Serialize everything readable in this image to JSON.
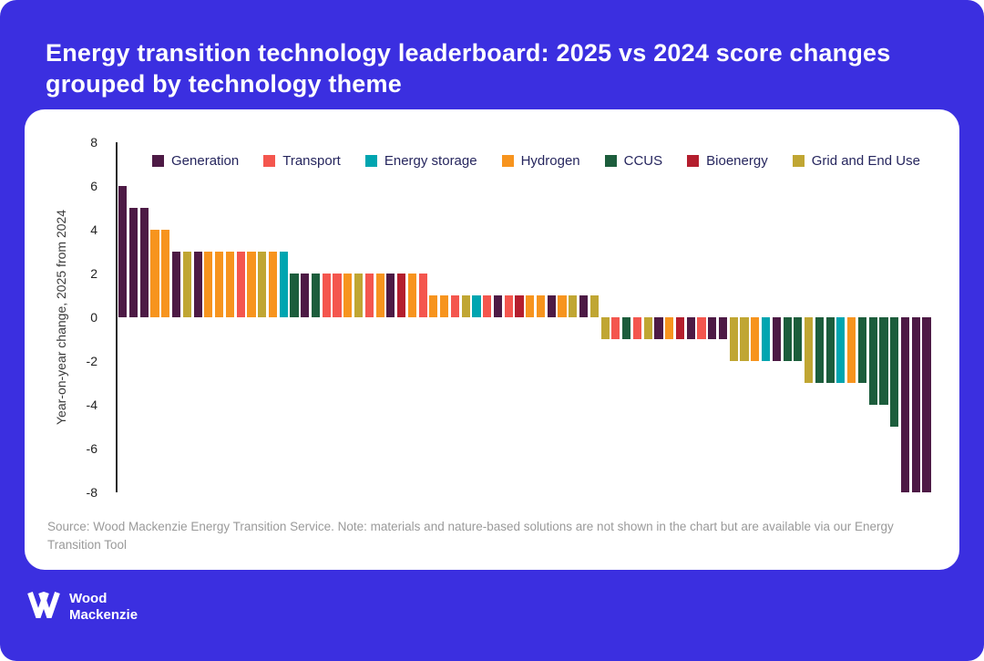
{
  "page": {
    "title": "Energy transition technology leaderboard: 2025 vs 2024 score changes grouped by technology theme",
    "background_color": "#3B2FE0",
    "source_note": "Source: Wood Mackenzie Energy Transition Service. Note: materials and nature-based solutions are not shown in the chart but are available via our Energy Transition Tool",
    "logo": {
      "line1": "Wood",
      "line2": "Mackenzie"
    }
  },
  "chart_data": {
    "type": "bar",
    "title": "Energy transition technology leaderboard: 2025 vs 2024 score changes grouped by technology theme",
    "xlabel": "",
    "ylabel": "Year-on-year change, 2025 from 2024",
    "ylim": [
      -8,
      8
    ],
    "yticks": [
      8,
      6,
      4,
      2,
      0,
      -2,
      -4,
      -6,
      -8
    ],
    "grid": false,
    "legend_position": "top",
    "legend": [
      {
        "key": "generation",
        "label": "Generation",
        "color": "#4D1A45"
      },
      {
        "key": "transport",
        "label": "Transport",
        "color": "#F4564E"
      },
      {
        "key": "storage",
        "label": "Energy storage",
        "color": "#00A5B0"
      },
      {
        "key": "hydrogen",
        "label": "Hydrogen",
        "color": "#F7941E"
      },
      {
        "key": "ccus",
        "label": "CCUS",
        "color": "#1C5D3C"
      },
      {
        "key": "bioenergy",
        "label": "Bioenergy",
        "color": "#B41E2E"
      },
      {
        "key": "grid",
        "label": "Grid and End Use",
        "color": "#C0A633"
      }
    ],
    "bars": [
      {
        "theme": "generation",
        "value": 6
      },
      {
        "theme": "generation",
        "value": 5
      },
      {
        "theme": "generation",
        "value": 5
      },
      {
        "theme": "hydrogen",
        "value": 4
      },
      {
        "theme": "hydrogen",
        "value": 4
      },
      {
        "theme": "generation",
        "value": 3
      },
      {
        "theme": "grid",
        "value": 3
      },
      {
        "theme": "generation",
        "value": 3
      },
      {
        "theme": "hydrogen",
        "value": 3
      },
      {
        "theme": "hydrogen",
        "value": 3
      },
      {
        "theme": "hydrogen",
        "value": 3
      },
      {
        "theme": "transport",
        "value": 3
      },
      {
        "theme": "hydrogen",
        "value": 3
      },
      {
        "theme": "grid",
        "value": 3
      },
      {
        "theme": "hydrogen",
        "value": 3
      },
      {
        "theme": "storage",
        "value": 3
      },
      {
        "theme": "ccus",
        "value": 2
      },
      {
        "theme": "generation",
        "value": 2
      },
      {
        "theme": "ccus",
        "value": 2
      },
      {
        "theme": "transport",
        "value": 2
      },
      {
        "theme": "transport",
        "value": 2
      },
      {
        "theme": "hydrogen",
        "value": 2
      },
      {
        "theme": "grid",
        "value": 2
      },
      {
        "theme": "transport",
        "value": 2
      },
      {
        "theme": "hydrogen",
        "value": 2
      },
      {
        "theme": "generation",
        "value": 2
      },
      {
        "theme": "bioenergy",
        "value": 2
      },
      {
        "theme": "hydrogen",
        "value": 2
      },
      {
        "theme": "transport",
        "value": 2
      },
      {
        "theme": "hydrogen",
        "value": 1
      },
      {
        "theme": "hydrogen",
        "value": 1
      },
      {
        "theme": "transport",
        "value": 1
      },
      {
        "theme": "grid",
        "value": 1
      },
      {
        "theme": "storage",
        "value": 1
      },
      {
        "theme": "transport",
        "value": 1
      },
      {
        "theme": "generation",
        "value": 1
      },
      {
        "theme": "transport",
        "value": 1
      },
      {
        "theme": "bioenergy",
        "value": 1
      },
      {
        "theme": "hydrogen",
        "value": 1
      },
      {
        "theme": "hydrogen",
        "value": 1
      },
      {
        "theme": "generation",
        "value": 1
      },
      {
        "theme": "hydrogen",
        "value": 1
      },
      {
        "theme": "grid",
        "value": 1
      },
      {
        "theme": "generation",
        "value": 1
      },
      {
        "theme": "grid",
        "value": 1
      },
      {
        "theme": "grid",
        "value": -1
      },
      {
        "theme": "transport",
        "value": -1
      },
      {
        "theme": "ccus",
        "value": -1
      },
      {
        "theme": "transport",
        "value": -1
      },
      {
        "theme": "grid",
        "value": -1
      },
      {
        "theme": "generation",
        "value": -1
      },
      {
        "theme": "hydrogen",
        "value": -1
      },
      {
        "theme": "bioenergy",
        "value": -1
      },
      {
        "theme": "generation",
        "value": -1
      },
      {
        "theme": "transport",
        "value": -1
      },
      {
        "theme": "generation",
        "value": -1
      },
      {
        "theme": "generation",
        "value": -1
      },
      {
        "theme": "grid",
        "value": -2
      },
      {
        "theme": "grid",
        "value": -2
      },
      {
        "theme": "hydrogen",
        "value": -2
      },
      {
        "theme": "storage",
        "value": -2
      },
      {
        "theme": "generation",
        "value": -2
      },
      {
        "theme": "ccus",
        "value": -2
      },
      {
        "theme": "ccus",
        "value": -2
      },
      {
        "theme": "grid",
        "value": -3
      },
      {
        "theme": "ccus",
        "value": -3
      },
      {
        "theme": "ccus",
        "value": -3
      },
      {
        "theme": "storage",
        "value": -3
      },
      {
        "theme": "hydrogen",
        "value": -3
      },
      {
        "theme": "ccus",
        "value": -3
      },
      {
        "theme": "ccus",
        "value": -4
      },
      {
        "theme": "ccus",
        "value": -4
      },
      {
        "theme": "ccus",
        "value": -5
      },
      {
        "theme": "generation",
        "value": -8
      },
      {
        "theme": "generation",
        "value": -8
      },
      {
        "theme": "generation",
        "value": -8
      }
    ]
  }
}
